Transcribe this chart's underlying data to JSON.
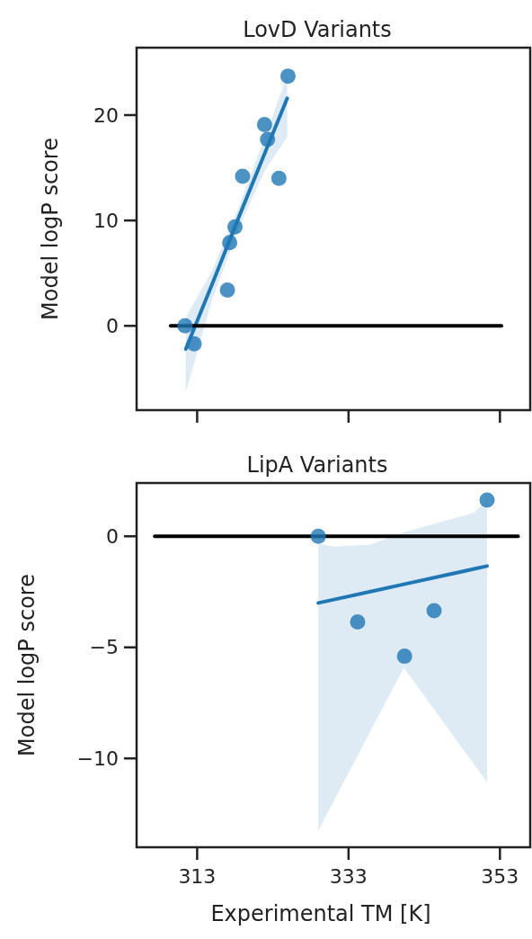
{
  "chart_data": [
    {
      "type": "scatter",
      "title": "LovD Variants",
      "ylabel": "Model logP score",
      "xlim": [
        305,
        357
      ],
      "xticks": [
        {
          "value": 313,
          "label": null
        },
        {
          "value": 333,
          "label": null
        },
        {
          "value": 353,
          "label": null
        }
      ],
      "ylim": [
        -8,
        26.4
      ],
      "yticks": [
        0,
        10,
        20
      ],
      "tick_labels": "y",
      "series": [
        {
          "marker": "circle",
          "color": "#1f77b4",
          "x": [
            311.4,
            312.6,
            317.0,
            317.3,
            318.0,
            319.0,
            321.9,
            322.3,
            323.8,
            325.0
          ],
          "values": [
            0,
            -1.7,
            3.4,
            7.9,
            9.4,
            14.2,
            19.1,
            17.7,
            14.0,
            23.7
          ]
        },
        {
          "type": "line",
          "color": "#1f77b4",
          "x": [
            311.5,
            315,
            318.5,
            322,
            324.9
          ],
          "values": [
            -2.2,
            4.0,
            10.3,
            16.5,
            21.6
          ],
          "lower": [
            -6.3,
            2.5,
            9.3,
            14.8,
            17.9
          ],
          "upper": [
            0.8,
            5.3,
            11.3,
            18.0,
            23.8
          ]
        },
        {
          "type": "line",
          "color": "#000000",
          "x": [
            309.5,
            353.2
          ],
          "values": [
            0,
            0
          ]
        }
      ]
    },
    {
      "type": "scatter",
      "title": "LipA Variants",
      "xlabel": "Experimental TM [K]",
      "ylabel": "Model logP score",
      "xlim": [
        305,
        357
      ],
      "xticks": [
        313,
        333,
        353
      ],
      "ylim": [
        -14,
        2.4
      ],
      "yticks": [
        -10,
        -5,
        0
      ],
      "series": [
        {
          "marker": "circle",
          "color": "#1f77b4",
          "x": [
            329.0,
            334.2,
            340.4,
            344.3,
            351.3
          ],
          "values": [
            0,
            -3.86,
            -5.4,
            -3.35,
            1.63
          ]
        },
        {
          "type": "line",
          "color": "#1f77b4",
          "x": [
            329.0,
            331.2,
            335.9,
            340.3,
            349.6,
            351.3
          ],
          "values": [
            -3.0,
            -2.84,
            -2.49,
            -2.16,
            -1.47,
            -1.34
          ],
          "lower": [
            -13.24,
            -11.81,
            -8.77,
            -5.92,
            -10.27,
            -11.07
          ],
          "upper": [
            -0.33,
            -0.46,
            -0.37,
            0.18,
            1.06,
            1.67
          ]
        },
        {
          "type": "line",
          "color": "#000000",
          "x": [
            307.4,
            355.4
          ],
          "values": [
            0,
            0
          ]
        }
      ]
    }
  ]
}
